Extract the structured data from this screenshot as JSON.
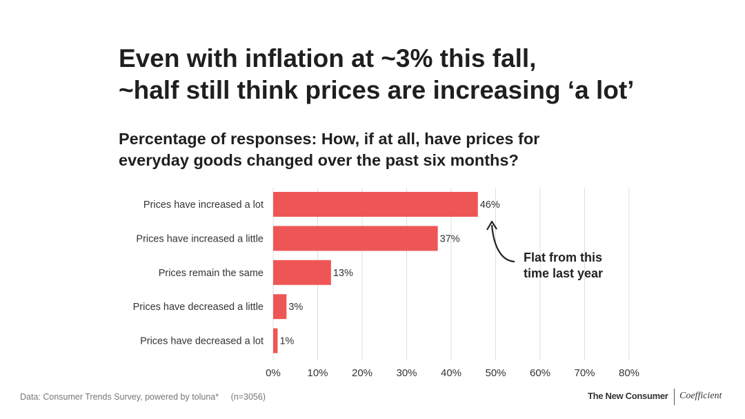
{
  "title_line1": "Even with inflation at ~3% this fall,",
  "title_line2": "~half still think prices are increasing ‘a lot’",
  "subtitle_line1": "Percentage of responses: How, if at all, have prices for",
  "subtitle_line2": "everyday goods changed over the past six months?",
  "chart_data": {
    "type": "bar",
    "orientation": "horizontal",
    "categories": [
      "Prices have increased a lot",
      "Prices have increased a little",
      "Prices remain the same",
      "Prices have decreased a little",
      "Prices have decreased a lot"
    ],
    "values": [
      46,
      37,
      13,
      3,
      1
    ],
    "value_labels": [
      "46%",
      "37%",
      "13%",
      "3%",
      "1%"
    ],
    "xlim": [
      0,
      80
    ],
    "xticks": [
      0,
      10,
      20,
      30,
      40,
      50,
      60,
      70,
      80
    ],
    "xtick_labels": [
      "0%",
      "10%",
      "20%",
      "30%",
      "40%",
      "50%",
      "60%",
      "70%",
      "80%"
    ],
    "grid": true,
    "bar_color": "#ee5655",
    "annotation": {
      "text_lines": [
        "Flat from this",
        "time last year"
      ],
      "target_category": "Prices have increased a lot"
    }
  },
  "footer": {
    "source": "Data: Consumer Trends Survey, powered by toluna*",
    "sample": "(n=3056)",
    "brand1": "The New Consumer",
    "brand2": "Coefficient"
  }
}
